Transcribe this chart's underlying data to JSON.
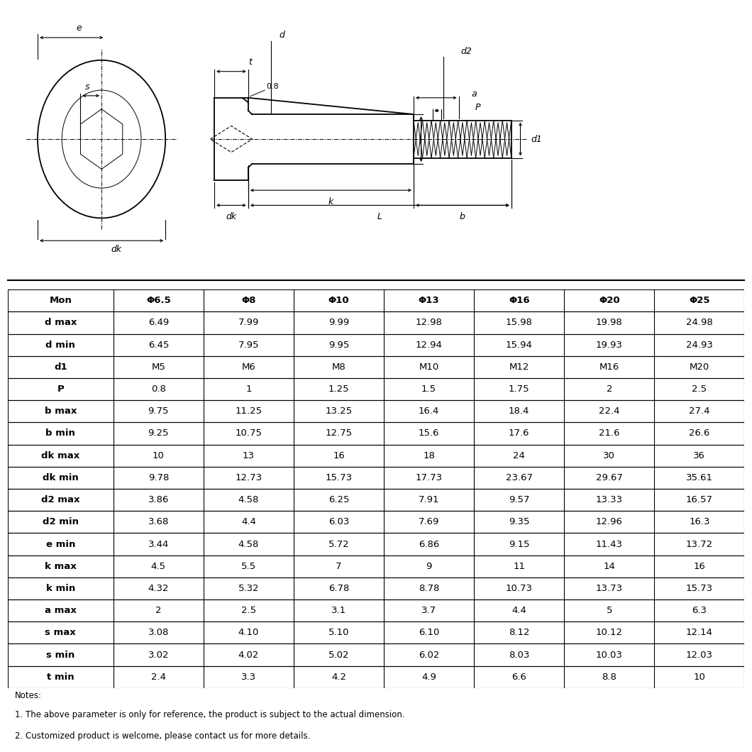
{
  "table_headers": [
    "Mon",
    "Φ6.5",
    "Φ8",
    "Φ10",
    "Φ13",
    "Φ16",
    "Φ20",
    "Φ25"
  ],
  "table_rows": [
    [
      "d max",
      "6.49",
      "7.99",
      "9.99",
      "12.98",
      "15.98",
      "19.98",
      "24.98"
    ],
    [
      "d min",
      "6.45",
      "7.95",
      "9.95",
      "12.94",
      "15.94",
      "19.93",
      "24.93"
    ],
    [
      "d1",
      "M5",
      "M6",
      "M8",
      "M10",
      "M12",
      "M16",
      "M20"
    ],
    [
      "P",
      "0.8",
      "1",
      "1.25",
      "1.5",
      "1.75",
      "2",
      "2.5"
    ],
    [
      "b max",
      "9.75",
      "11.25",
      "13.25",
      "16.4",
      "18.4",
      "22.4",
      "27.4"
    ],
    [
      "b min",
      "9.25",
      "10.75",
      "12.75",
      "15.6",
      "17.6",
      "21.6",
      "26.6"
    ],
    [
      "dk max",
      "10",
      "13",
      "16",
      "18",
      "24",
      "30",
      "36"
    ],
    [
      "dk min",
      "9.78",
      "12.73",
      "15.73",
      "17.73",
      "23.67",
      "29.67",
      "35.61"
    ],
    [
      "d2 max",
      "3.86",
      "4.58",
      "6.25",
      "7.91",
      "9.57",
      "13.33",
      "16.57"
    ],
    [
      "d2 min",
      "3.68",
      "4.4",
      "6.03",
      "7.69",
      "9.35",
      "12.96",
      "16.3"
    ],
    [
      "e min",
      "3.44",
      "4.58",
      "5.72",
      "6.86",
      "9.15",
      "11.43",
      "13.72"
    ],
    [
      "k max",
      "4.5",
      "5.5",
      "7",
      "9",
      "11",
      "14",
      "16"
    ],
    [
      "k min",
      "4.32",
      "5.32",
      "6.78",
      "8.78",
      "10.73",
      "13.73",
      "15.73"
    ],
    [
      "a max",
      "2",
      "2.5",
      "3.1",
      "3.7",
      "4.4",
      "5",
      "6.3"
    ],
    [
      "s max",
      "3.08",
      "4.10",
      "5.10",
      "6.10",
      "8.12",
      "10.12",
      "12.14"
    ],
    [
      "s min",
      "3.02",
      "4.02",
      "5.02",
      "6.02",
      "8.03",
      "10.03",
      "12.03"
    ],
    [
      "t min",
      "2.4",
      "3.3",
      "4.2",
      "4.9",
      "6.6",
      "8.8",
      "10"
    ]
  ],
  "notes": [
    "Notes:",
    "1. The above parameter is only for reference, the product is subject to the actual dimension.",
    "2. Customized product is welcome, please contact us for more details."
  ],
  "bg_color": "#ffffff"
}
